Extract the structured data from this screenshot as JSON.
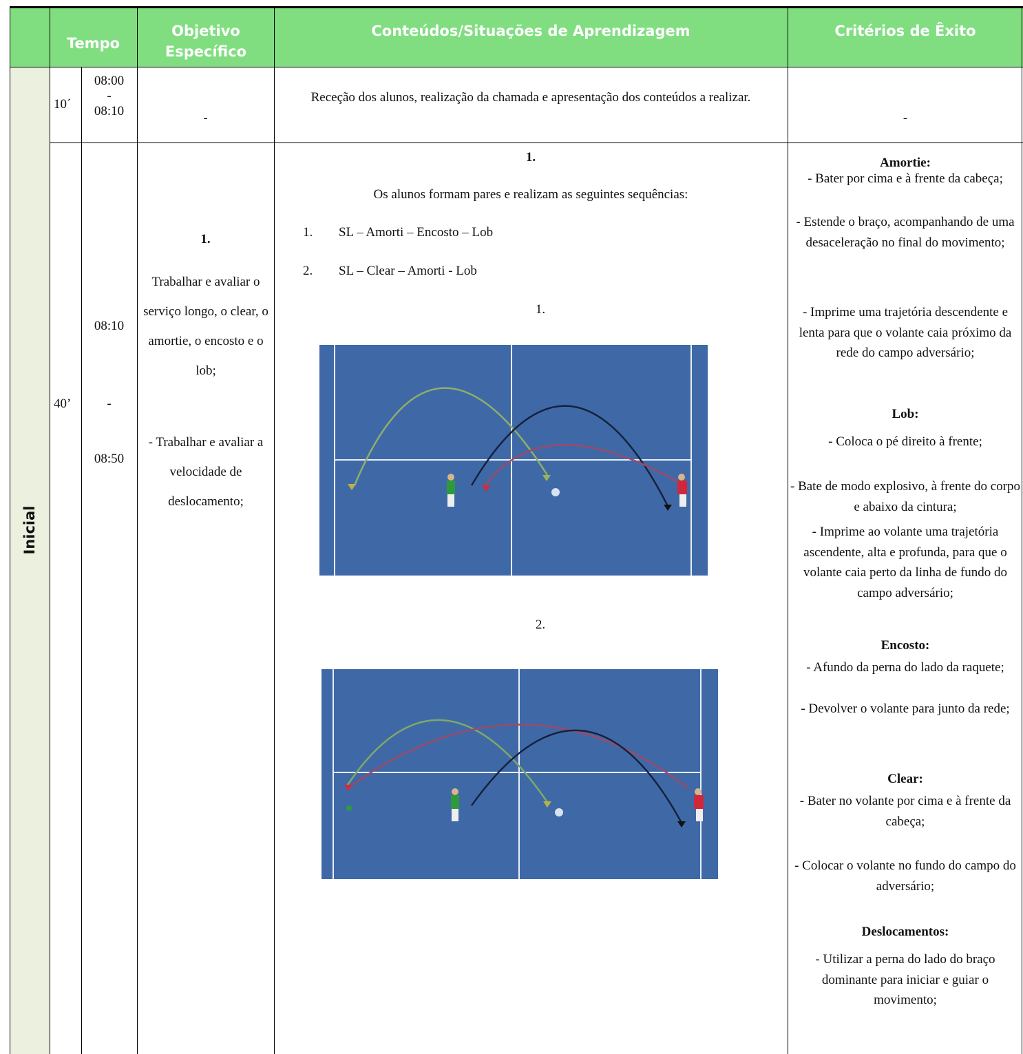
{
  "header": {
    "columns": [
      "Tempo",
      "Objetivo Específico",
      "Conteúdos/Situações de Aprendizagem",
      "Critérios de Êxito"
    ]
  },
  "phase": "Inicial",
  "rows": [
    {
      "duration": "10´",
      "time": [
        "08:00",
        "-",
        "08:10"
      ],
      "objective": "-",
      "content": "Receção dos alunos, realização da chamada e apresentação dos conteúdos a realizar.",
      "criteria": "-"
    },
    {
      "duration": "40’",
      "time": [
        "08:10",
        "-",
        "08:50"
      ],
      "objective": {
        "number": "1.",
        "paragraphs": [
          "Trabalhar e avaliar o serviço longo, o clear, o amortie, o encosto e o lob;",
          "- Trabalhar e avaliar a velocidade de deslocamento;"
        ]
      },
      "content": {
        "number": "1.",
        "intro": "Os alunos formam pares e realizam as seguintes sequências:",
        "sequences": [
          {
            "number": "1.",
            "text": "SL – Amorti – Encosto – Lob"
          },
          {
            "number": "2.",
            "text": "SL – Clear – Amorti - Lob"
          }
        ],
        "figures": [
          {
            "label": "1."
          },
          {
            "label": "2."
          }
        ]
      },
      "criteria": [
        {
          "heading": "Amortie:",
          "items": [
            "- Bater por cima e à frente da cabeça;",
            "- Estende o braço, acompanhando de uma desaceleração no final do movimento;",
            "- Imprime uma trajetória descendente e lenta para que o volante caia próximo da rede do campo adversário;"
          ]
        },
        {
          "heading": "Lob:",
          "items": [
            "- Coloca o pé direito à frente;",
            "- Bate de modo explosivo, à frente do corpo e abaixo da cintura;",
            "- Imprime ao volante uma trajetória ascendente, alta e profunda, para que o volante caia perto da linha de fundo do campo adversário;"
          ]
        },
        {
          "heading": "Encosto:",
          "items": [
            "- Afundo da perna do lado da raquete;",
            "- Devolver o volante para junto da rede;"
          ]
        },
        {
          "heading": "Clear:",
          "items": [
            "- Bater no volante por cima e à frente da cabeça;",
            "- Colocar o volante no fundo do campo do adversário;"
          ]
        },
        {
          "heading": "Deslocamentos:",
          "items": [
            "- Utilizar a perna do lado do braço dominante para iniciar e guiar o movimento;"
          ]
        }
      ]
    }
  ]
}
